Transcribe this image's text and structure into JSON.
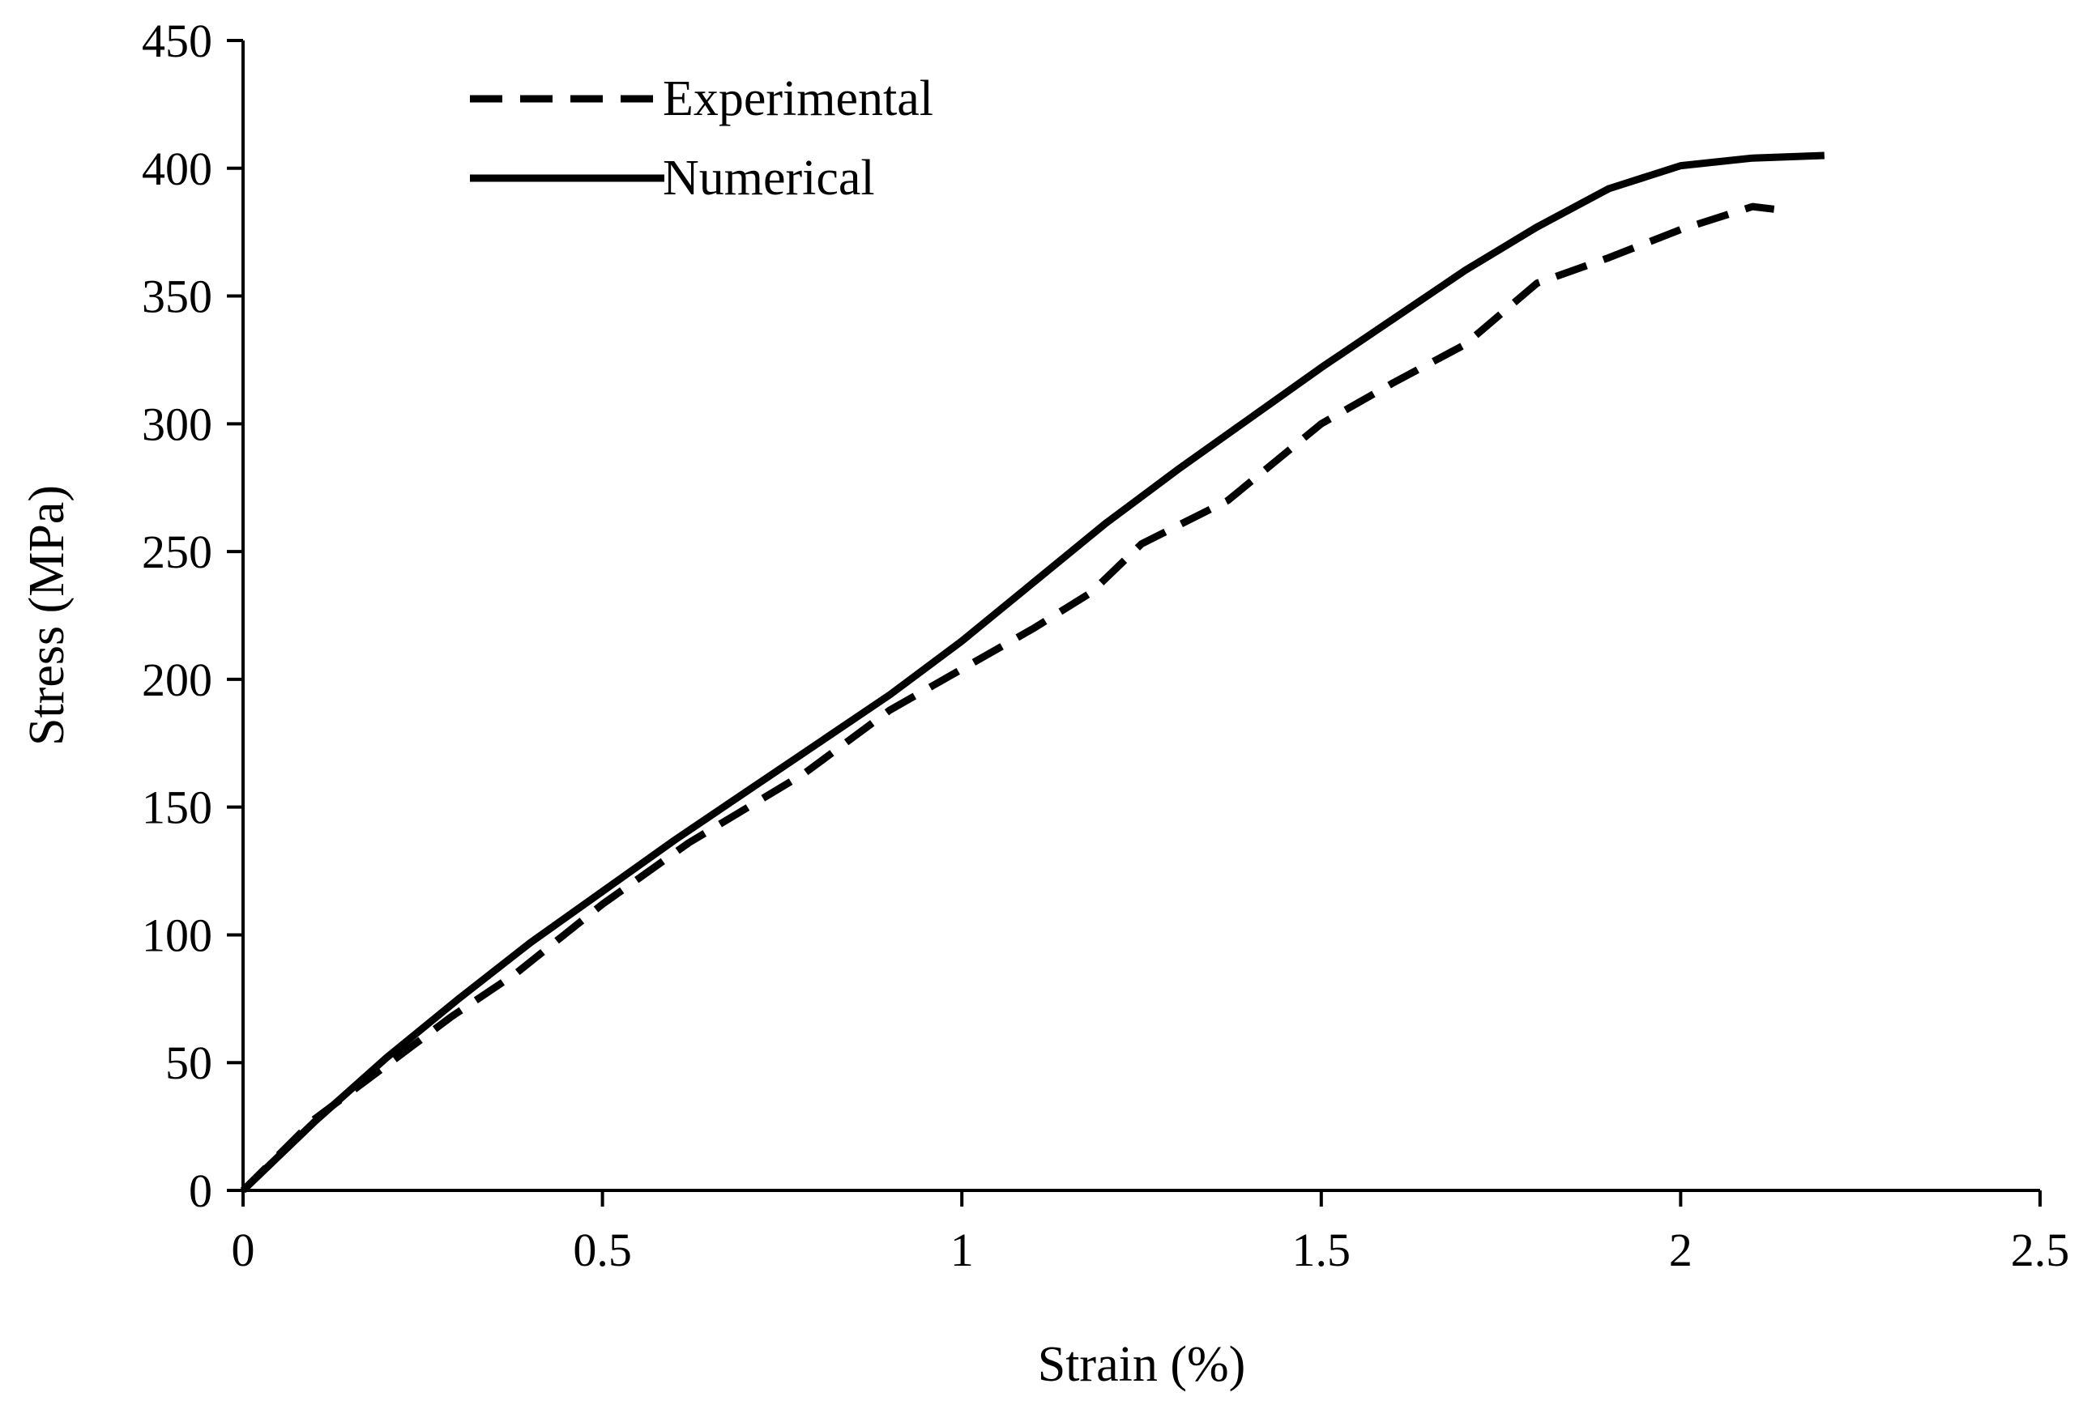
{
  "chart_data": {
    "type": "line",
    "title": "",
    "xlabel": "Strain (%)",
    "ylabel": "Stress (MPa)",
    "xlim": [
      0,
      2.5
    ],
    "ylim": [
      0,
      450
    ],
    "xticks": [
      0,
      0.5,
      1,
      1.5,
      2,
      2.5
    ],
    "xtick_labels": [
      "0",
      "0.5",
      "1",
      "1.5",
      "2",
      "2.5"
    ],
    "yticks": [
      0,
      50,
      100,
      150,
      200,
      250,
      300,
      350,
      400,
      450
    ],
    "ytick_labels": [
      "0",
      "50",
      "100",
      "150",
      "200",
      "250",
      "300",
      "350",
      "400",
      "450"
    ],
    "grid": false,
    "legend_position": "top-left",
    "series": [
      {
        "name": "Experimental",
        "style": "dashed",
        "color": "#000000",
        "x": [
          0,
          0.1,
          0.2,
          0.29,
          0.38,
          0.5,
          0.62,
          0.78,
          0.9,
          1.0,
          1.1,
          1.18,
          1.25,
          1.37,
          1.5,
          1.6,
          1.7,
          1.8,
          1.9,
          2.0,
          2.1,
          2.13
        ],
        "y": [
          0,
          28,
          49,
          68,
          85,
          112,
          136,
          163,
          188,
          204,
          220,
          234,
          253,
          270,
          300,
          316,
          331,
          355,
          365,
          376,
          385,
          384
        ]
      },
      {
        "name": "Numerical",
        "style": "solid",
        "color": "#000000",
        "x": [
          0,
          0.1,
          0.2,
          0.3,
          0.4,
          0.5,
          0.6,
          0.7,
          0.8,
          0.9,
          1.0,
          1.1,
          1.2,
          1.3,
          1.4,
          1.5,
          1.6,
          1.7,
          1.8,
          1.9,
          2.0,
          2.1,
          2.2
        ],
        "y": [
          0,
          27,
          52,
          75,
          97,
          117,
          137,
          156,
          175,
          194,
          215,
          238,
          261,
          282,
          302,
          322,
          341,
          360,
          377,
          392,
          401,
          404,
          405
        ]
      }
    ]
  }
}
